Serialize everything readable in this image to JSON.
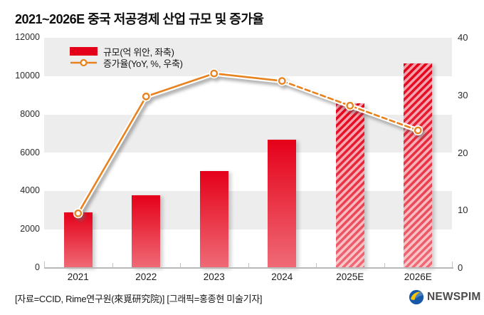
{
  "title": "2021~2026E 중국 저공경제 산업 규모 및 증가율",
  "legend": {
    "bar_label": "규모(억 위안, 좌축)",
    "line_label": "증가율(YoY, %, 우축)"
  },
  "footer": {
    "source": "[자료=CCID, Rime연구원(來覓研究院)] [그래픽=홍종현 미술기자]",
    "brand": "NEWSPIM"
  },
  "colors": {
    "bar_red_top": "#e50019",
    "bar_red_bottom": "#ef6b76",
    "line_orange": "#e8821e",
    "band_gray": "#eeedee",
    "axis_gray": "#b9b9b9",
    "brand_blue": "#1559a8",
    "brand_yellow": "#f7c600"
  },
  "chart_data": {
    "type": "bar+line combo",
    "categories": [
      "2021",
      "2022",
      "2023",
      "2024",
      "2025E",
      "2026E"
    ],
    "series": [
      {
        "name": "규모(억 위안, 좌축)",
        "type": "bar",
        "axis": "left",
        "values": [
          2900,
          3780,
          5060,
          6700,
          8590,
          10645
        ],
        "hatched_from_index": 4
      },
      {
        "name": "증가율(YoY, %, 우축)",
        "type": "line",
        "axis": "right",
        "values": [
          9.5,
          29.8,
          33.8,
          32.5,
          28.2,
          23.9
        ],
        "dashed_from_index": 3
      }
    ],
    "left_axis": {
      "label": "규모(억 위안)",
      "range": [
        0,
        12000
      ],
      "ticks": [
        0,
        2000,
        4000,
        6000,
        8000,
        10000,
        12000
      ]
    },
    "right_axis": {
      "label": "증가율(YoY, %)",
      "range": [
        0,
        40
      ],
      "ticks": [
        0,
        10,
        20,
        30,
        40
      ]
    },
    "grid": "alternating horizontal gray bands",
    "legend_position": "top-left inside plot"
  }
}
